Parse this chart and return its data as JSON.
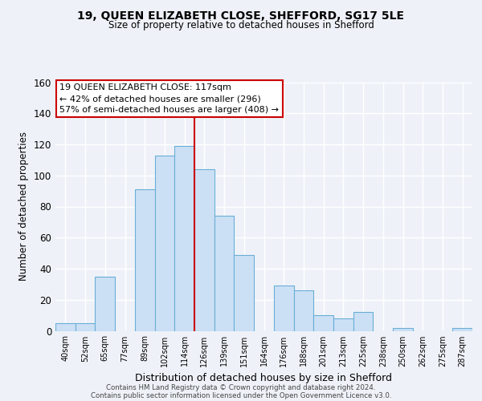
{
  "title": "19, QUEEN ELIZABETH CLOSE, SHEFFORD, SG17 5LE",
  "subtitle": "Size of property relative to detached houses in Shefford",
  "xlabel": "Distribution of detached houses by size in Shefford",
  "ylabel": "Number of detached properties",
  "bar_labels": [
    "40sqm",
    "52sqm",
    "65sqm",
    "77sqm",
    "89sqm",
    "102sqm",
    "114sqm",
    "126sqm",
    "139sqm",
    "151sqm",
    "164sqm",
    "176sqm",
    "188sqm",
    "201sqm",
    "213sqm",
    "225sqm",
    "238sqm",
    "250sqm",
    "262sqm",
    "275sqm",
    "287sqm"
  ],
  "bar_values": [
    5,
    5,
    35,
    0,
    91,
    113,
    119,
    104,
    74,
    49,
    0,
    29,
    26,
    10,
    8,
    12,
    0,
    2,
    0,
    0,
    2
  ],
  "bar_color": "#cce0f5",
  "bar_edge_color": "#6aaed6",
  "vline_x_index": 6.5,
  "vline_color": "#cc0000",
  "ylim": [
    0,
    160
  ],
  "yticks": [
    0,
    20,
    40,
    60,
    80,
    100,
    120,
    140,
    160
  ],
  "annotation_line1": "19 QUEEN ELIZABETH CLOSE: 117sqm",
  "annotation_line2": "← 42% of detached houses are smaller (296)",
  "annotation_line3": "57% of semi-detached houses are larger (408) →",
  "ann_border_color": "#cc0000",
  "footer1": "Contains HM Land Registry data © Crown copyright and database right 2024.",
  "footer2": "Contains public sector information licensed under the Open Government Licence v3.0.",
  "bg_color": "#eef2f8",
  "plot_bg_color": "#eef2f8",
  "grid_color": "#ffffff"
}
